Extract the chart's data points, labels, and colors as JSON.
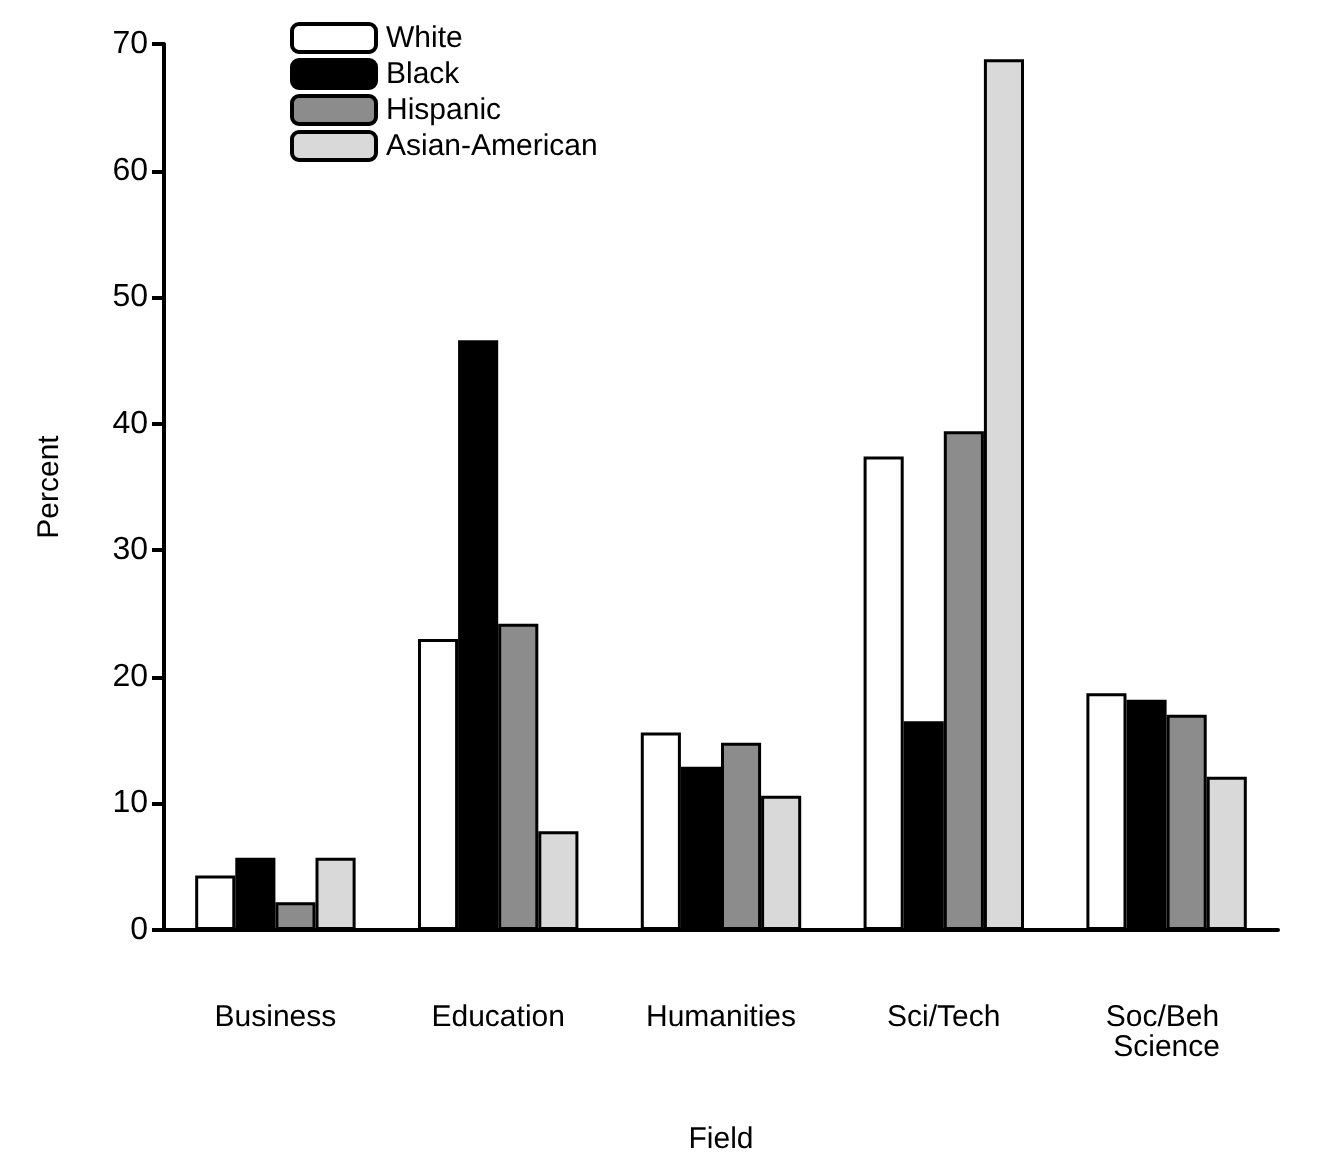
{
  "chart_data": {
    "type": "bar",
    "xlabel": "Field",
    "ylabel": "Percent",
    "categories": [
      "Business",
      "Education",
      "Humanities",
      "Sci/Tech",
      "Soc/Beh Science"
    ],
    "series": [
      {
        "name": "White",
        "color": "#ffffff",
        "values": [
          4.3,
          23.0,
          15.6,
          37.4,
          18.7
        ]
      },
      {
        "name": "Black",
        "color": "#000000",
        "values": [
          5.7,
          46.6,
          12.9,
          16.5,
          18.2
        ]
      },
      {
        "name": "Hispanic",
        "color": "#8c8c8c",
        "values": [
          2.2,
          24.2,
          14.8,
          39.4,
          17.0
        ]
      },
      {
        "name": "Asian-American",
        "color": "#d9d9d9",
        "values": [
          5.7,
          7.8,
          10.6,
          68.8,
          12.1
        ]
      }
    ],
    "ylim": [
      0,
      70
    ],
    "yticks": [
      0,
      10,
      20,
      30,
      40,
      50,
      60,
      70
    ],
    "grid": false,
    "legend": "top left"
  }
}
